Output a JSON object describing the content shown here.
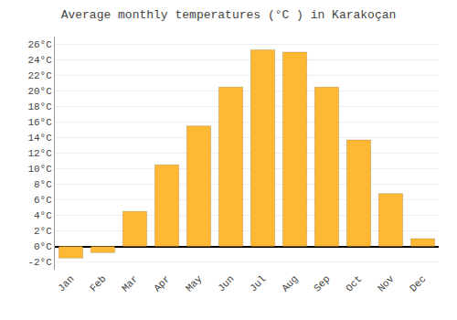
{
  "chart_data": {
    "type": "bar",
    "title": "Average monthly temperatures (°C ) in Karakoçan",
    "categories": [
      "Jan",
      "Feb",
      "Mar",
      "Apr",
      "May",
      "Jun",
      "Jul",
      "Aug",
      "Sep",
      "Oct",
      "Nov",
      "Dec"
    ],
    "values": [
      -1.5,
      -0.8,
      4.5,
      10.5,
      15.5,
      20.5,
      25.3,
      25.0,
      20.5,
      13.7,
      6.8,
      1.0
    ],
    "color": "#FFB833",
    "ylim": [
      -3,
      27
    ],
    "yticks": [
      {
        "value": -2,
        "label": "-2°C"
      },
      {
        "value": 0,
        "label": "0°C"
      },
      {
        "value": 2,
        "label": "2°C"
      },
      {
        "value": 4,
        "label": "4°C"
      },
      {
        "value": 6,
        "label": "6°C"
      },
      {
        "value": 8,
        "label": "8°C"
      },
      {
        "value": 10,
        "label": "10°C"
      },
      {
        "value": 12,
        "label": "12°C"
      },
      {
        "value": 14,
        "label": "14°C"
      },
      {
        "value": 16,
        "label": "16°C"
      },
      {
        "value": 18,
        "label": "18°C"
      },
      {
        "value": 20,
        "label": "20°C"
      },
      {
        "value": 22,
        "label": "22°C"
      },
      {
        "value": 24,
        "label": "24°C"
      },
      {
        "value": 26,
        "label": "26°C"
      }
    ],
    "grid": true
  }
}
